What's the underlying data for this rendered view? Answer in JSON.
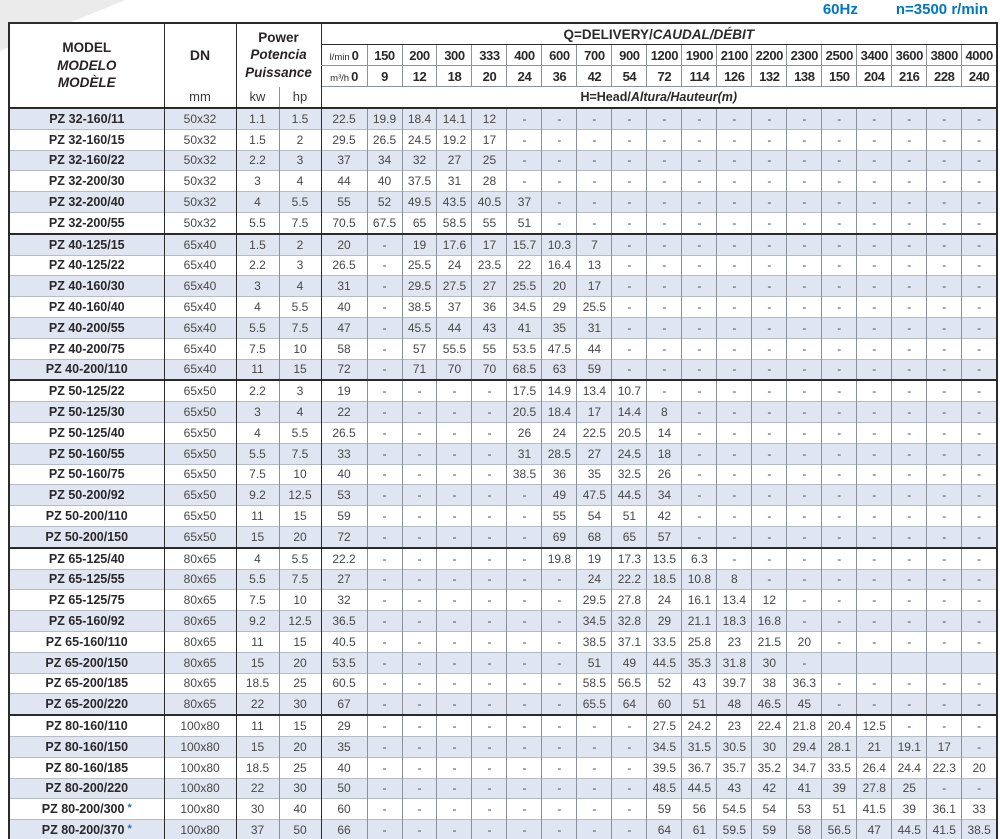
{
  "page": {
    "frequency_label": "60Hz",
    "speed_label": "n=3500 r/min"
  },
  "colors": {
    "accent_blue": "#0076bf",
    "row_alt_bg": "#e0e6f1",
    "border_dark": "#2b2b2b",
    "grid_gray": "#8c929b"
  },
  "table": {
    "header": {
      "model_en": "MODEL",
      "model_es": "MODELO",
      "model_fr": "MODÈLE",
      "dn": "DN",
      "dn_unit": "mm",
      "power_en": "Power",
      "power_es": "Potencia",
      "power_fr": "Puissance",
      "kw": "kw",
      "hp": "hp",
      "q_title_en": "Q=DELIVERY/",
      "q_title_intl": "CAUDAL/DÉBIT",
      "lmin_label": "l/min",
      "m3h_label": "m³/h",
      "lmin_values": [
        "0",
        "150",
        "200",
        "300",
        "333",
        "400",
        "600",
        "700",
        "900",
        "1200",
        "1900",
        "2100",
        "2200",
        "2300",
        "2500",
        "3400",
        "3600",
        "3800",
        "4000"
      ],
      "m3h_values": [
        "0",
        "9",
        "12",
        "18",
        "20",
        "24",
        "36",
        "42",
        "54",
        "72",
        "114",
        "126",
        "132",
        "138",
        "150",
        "204",
        "216",
        "228",
        "240"
      ],
      "head_title_en": "H=Head/",
      "head_title_intl": "Altura/Hauteur(m)"
    },
    "rows": [
      {
        "model": "PZ 32-160/11",
        "asterisk": false,
        "dn": "50x32",
        "kw": "1.1",
        "hp": "1.5",
        "heads": [
          "22.5",
          "19.9",
          "18.4",
          "14.1",
          "12",
          "-",
          "-",
          "-",
          "-",
          "-",
          "-",
          "-",
          "-",
          "-",
          "-",
          "-",
          "-",
          "-",
          "-"
        ]
      },
      {
        "model": "PZ 32-160/15",
        "asterisk": false,
        "dn": "50x32",
        "kw": "1.5",
        "hp": "2",
        "heads": [
          "29.5",
          "26.5",
          "24.5",
          "19.2",
          "17",
          "-",
          "-",
          "-",
          "-",
          "-",
          "-",
          "-",
          "-",
          "-",
          "-",
          "-",
          "-",
          "-",
          "-"
        ]
      },
      {
        "model": "PZ 32-160/22",
        "asterisk": false,
        "dn": "50x32",
        "kw": "2.2",
        "hp": "3",
        "heads": [
          "37",
          "34",
          "32",
          "27",
          "25",
          "-",
          "-",
          "-",
          "-",
          "-",
          "-",
          "-",
          "-",
          "-",
          "-",
          "-",
          "-",
          "-",
          "-"
        ]
      },
      {
        "model": "PZ 32-200/30",
        "asterisk": false,
        "dn": "50x32",
        "kw": "3",
        "hp": "4",
        "heads": [
          "44",
          "40",
          "37.5",
          "31",
          "28",
          "-",
          "-",
          "-",
          "-",
          "-",
          "-",
          "-",
          "-",
          "-",
          "-",
          "-",
          "-",
          "-",
          "-"
        ]
      },
      {
        "model": "PZ 32-200/40",
        "asterisk": false,
        "dn": "50x32",
        "kw": "4",
        "hp": "5.5",
        "heads": [
          "55",
          "52",
          "49.5",
          "43.5",
          "40.5",
          "37",
          "-",
          "-",
          "-",
          "-",
          "-",
          "-",
          "-",
          "-",
          "-",
          "-",
          "-",
          "-",
          "-"
        ]
      },
      {
        "model": "PZ 32-200/55",
        "asterisk": false,
        "dn": "50x32",
        "kw": "5.5",
        "hp": "7.5",
        "heads": [
          "70.5",
          "67.5",
          "65",
          "58.5",
          "55",
          "51",
          "-",
          "-",
          "-",
          "-",
          "-",
          "-",
          "-",
          "-",
          "-",
          "-",
          "-",
          "-",
          "-"
        ]
      },
      {
        "model": "PZ 40-125/15",
        "asterisk": false,
        "dn": "65x40",
        "kw": "1.5",
        "hp": "2",
        "heads": [
          "20",
          "-",
          "19",
          "17.6",
          "17",
          "15.7",
          "10.3",
          "7",
          "-",
          "-",
          "-",
          "-",
          "-",
          "-",
          "-",
          "-",
          "-",
          "-",
          "-"
        ]
      },
      {
        "model": "PZ 40-125/22",
        "asterisk": false,
        "dn": "65x40",
        "kw": "2.2",
        "hp": "3",
        "heads": [
          "26.5",
          "-",
          "25.5",
          "24",
          "23.5",
          "22",
          "16.4",
          "13",
          "-",
          "-",
          "-",
          "-",
          "-",
          "-",
          "-",
          "-",
          "-",
          "-",
          "-"
        ]
      },
      {
        "model": "PZ 40-160/30",
        "asterisk": false,
        "dn": "65x40",
        "kw": "3",
        "hp": "4",
        "heads": [
          "31",
          "-",
          "29.5",
          "27.5",
          "27",
          "25.5",
          "20",
          "17",
          "-",
          "-",
          "-",
          "-",
          "-",
          "-",
          "-",
          "-",
          "-",
          "-",
          "-"
        ]
      },
      {
        "model": "PZ 40-160/40",
        "asterisk": false,
        "dn": "65x40",
        "kw": "4",
        "hp": "5.5",
        "heads": [
          "40",
          "-",
          "38.5",
          "37",
          "36",
          "34.5",
          "29",
          "25.5",
          "-",
          "-",
          "-",
          "-",
          "-",
          "-",
          "-",
          "-",
          "-",
          "-",
          "-"
        ]
      },
      {
        "model": "PZ 40-200/55",
        "asterisk": false,
        "dn": "65x40",
        "kw": "5.5",
        "hp": "7.5",
        "heads": [
          "47",
          "-",
          "45.5",
          "44",
          "43",
          "41",
          "35",
          "31",
          "-",
          "-",
          "-",
          "-",
          "-",
          "-",
          "-",
          "-",
          "-",
          "-",
          "-"
        ]
      },
      {
        "model": "PZ 40-200/75",
        "asterisk": false,
        "dn": "65x40",
        "kw": "7.5",
        "hp": "10",
        "heads": [
          "58",
          "-",
          "57",
          "55.5",
          "55",
          "53.5",
          "47.5",
          "44",
          "-",
          "-",
          "-",
          "-",
          "-",
          "-",
          "-",
          "-",
          "-",
          "-",
          "-"
        ]
      },
      {
        "model": "PZ 40-200/110",
        "asterisk": false,
        "dn": "65x40",
        "kw": "11",
        "hp": "15",
        "heads": [
          "72",
          "-",
          "71",
          "70",
          "70",
          "68.5",
          "63",
          "59",
          "-",
          "-",
          "-",
          "-",
          "-",
          "-",
          "-",
          "-",
          "-",
          "-",
          "-"
        ]
      },
      {
        "model": "PZ 50-125/22",
        "asterisk": false,
        "dn": "65x50",
        "kw": "2.2",
        "hp": "3",
        "heads": [
          "19",
          "-",
          "-",
          "-",
          "-",
          "17.5",
          "14.9",
          "13.4",
          "10.7",
          "-",
          "-",
          "-",
          "-",
          "-",
          "-",
          "-",
          "-",
          "-",
          "-"
        ]
      },
      {
        "model": "PZ 50-125/30",
        "asterisk": false,
        "dn": "65x50",
        "kw": "3",
        "hp": "4",
        "heads": [
          "22",
          "-",
          "-",
          "-",
          "-",
          "20.5",
          "18.4",
          "17",
          "14.4",
          "8",
          "-",
          "-",
          "-",
          "-",
          "-",
          "-",
          "-",
          "-",
          "-"
        ]
      },
      {
        "model": "PZ 50-125/40",
        "asterisk": false,
        "dn": "65x50",
        "kw": "4",
        "hp": "5.5",
        "heads": [
          "26.5",
          "-",
          "-",
          "-",
          "-",
          "26",
          "24",
          "22.5",
          "20.5",
          "14",
          "-",
          "-",
          "-",
          "-",
          "-",
          "-",
          "-",
          "-",
          "-"
        ]
      },
      {
        "model": "PZ 50-160/55",
        "asterisk": false,
        "dn": "65x50",
        "kw": "5.5",
        "hp": "7.5",
        "heads": [
          "33",
          "-",
          "-",
          "-",
          "-",
          "31",
          "28.5",
          "27",
          "24.5",
          "18",
          "-",
          "-",
          "-",
          "-",
          "-",
          "-",
          "-",
          "-",
          "-"
        ]
      },
      {
        "model": "PZ 50-160/75",
        "asterisk": false,
        "dn": "65x50",
        "kw": "7.5",
        "hp": "10",
        "heads": [
          "40",
          "-",
          "-",
          "-",
          "-",
          "38.5",
          "36",
          "35",
          "32.5",
          "26",
          "-",
          "-",
          "-",
          "-",
          "-",
          "-",
          "-",
          "-",
          "-"
        ]
      },
      {
        "model": "PZ 50-200/92",
        "asterisk": false,
        "dn": "65x50",
        "kw": "9.2",
        "hp": "12.5",
        "heads": [
          "53",
          "-",
          "-",
          "-",
          "-",
          "-",
          "49",
          "47.5",
          "44.5",
          "34",
          "-",
          "-",
          "-",
          "-",
          "-",
          "-",
          "-",
          "-",
          "-"
        ]
      },
      {
        "model": "PZ 50-200/110",
        "asterisk": false,
        "dn": "65x50",
        "kw": "11",
        "hp": "15",
        "heads": [
          "59",
          "-",
          "-",
          "-",
          "-",
          "-",
          "55",
          "54",
          "51",
          "42",
          "-",
          "-",
          "-",
          "-",
          "-",
          "-",
          "-",
          "-",
          "-"
        ]
      },
      {
        "model": "PZ 50-200/150",
        "asterisk": false,
        "dn": "65x50",
        "kw": "15",
        "hp": "20",
        "heads": [
          "72",
          "-",
          "-",
          "-",
          "-",
          "-",
          "69",
          "68",
          "65",
          "57",
          "-",
          "-",
          "-",
          "-",
          "-",
          "-",
          "-",
          "-",
          "-"
        ]
      },
      {
        "model": "PZ 65-125/40",
        "asterisk": false,
        "dn": "80x65",
        "kw": "4",
        "hp": "5.5",
        "heads": [
          "22.2",
          "-",
          "-",
          "-",
          "-",
          "-",
          "19.8",
          "19",
          "17.3",
          "13.5",
          "6.3",
          "-",
          "-",
          "-",
          "-",
          "-",
          "-",
          "-",
          "-"
        ]
      },
      {
        "model": "PZ 65-125/55",
        "asterisk": false,
        "dn": "80x65",
        "kw": "5.5",
        "hp": "7.5",
        "heads": [
          "27",
          "-",
          "-",
          "-",
          "-",
          "-",
          "-",
          "24",
          "22.2",
          "18.5",
          "10.8",
          "8",
          "-",
          "-",
          "-",
          "-",
          "-",
          "-",
          "-"
        ]
      },
      {
        "model": "PZ 65-125/75",
        "asterisk": false,
        "dn": "80x65",
        "kw": "7.5",
        "hp": "10",
        "heads": [
          "32",
          "-",
          "-",
          "-",
          "-",
          "-",
          "-",
          "29.5",
          "27.8",
          "24",
          "16.1",
          "13.4",
          "12",
          "-",
          "-",
          "-",
          "-",
          "-",
          "-"
        ]
      },
      {
        "model": "PZ 65-160/92",
        "asterisk": false,
        "dn": "80x65",
        "kw": "9.2",
        "hp": "12.5",
        "heads": [
          "36.5",
          "-",
          "-",
          "-",
          "-",
          "-",
          "-",
          "34.5",
          "32.8",
          "29",
          "21.1",
          "18.3",
          "16.8",
          "-",
          "-",
          "-",
          "-",
          "-",
          "-"
        ]
      },
      {
        "model": "PZ 65-160/110",
        "asterisk": false,
        "dn": "80x65",
        "kw": "11",
        "hp": "15",
        "heads": [
          "40.5",
          "-",
          "-",
          "-",
          "-",
          "-",
          "-",
          "38.5",
          "37.1",
          "33.5",
          "25.8",
          "23",
          "21.5",
          "20",
          "-",
          "-",
          "-",
          "-",
          "-"
        ]
      },
      {
        "model": "PZ 65-200/150",
        "asterisk": false,
        "dn": "80x65",
        "kw": "15",
        "hp": "20",
        "heads": [
          "53.5",
          "-",
          "-",
          "-",
          "-",
          "-",
          "-",
          "51",
          "49",
          "44.5",
          "35.3",
          "31.8",
          "30",
          "-",
          "",
          "",
          "",
          "",
          ""
        ]
      },
      {
        "model": "PZ 65-200/185",
        "asterisk": false,
        "dn": "80x65",
        "kw": "18.5",
        "hp": "25",
        "heads": [
          "60.5",
          "-",
          "-",
          "-",
          "-",
          "-",
          "-",
          "58.5",
          "56.5",
          "52",
          "43",
          "39.7",
          "38",
          "36.3",
          "-",
          "-",
          "-",
          "-",
          "-"
        ]
      },
      {
        "model": "PZ 65-200/220",
        "asterisk": false,
        "dn": "80x65",
        "kw": "22",
        "hp": "30",
        "heads": [
          "67",
          "-",
          "-",
          "-",
          "-",
          "-",
          "-",
          "65.5",
          "64",
          "60",
          "51",
          "48",
          "46.5",
          "45",
          "-",
          "-",
          "-",
          "-",
          "-"
        ]
      },
      {
        "model": "PZ 80-160/110",
        "asterisk": false,
        "dn": "100x80",
        "kw": "11",
        "hp": "15",
        "heads": [
          "29",
          "-",
          "-",
          "-",
          "-",
          "-",
          "-",
          "-",
          "-",
          "27.5",
          "24.2",
          "23",
          "22.4",
          "21.8",
          "20.4",
          "12.5",
          "-",
          "-",
          "-"
        ]
      },
      {
        "model": "PZ 80-160/150",
        "asterisk": false,
        "dn": "100x80",
        "kw": "15",
        "hp": "20",
        "heads": [
          "35",
          "-",
          "-",
          "-",
          "-",
          "-",
          "-",
          "-",
          "-",
          "34.5",
          "31.5",
          "30.5",
          "30",
          "29.4",
          "28.1",
          "21",
          "19.1",
          "17",
          "-"
        ]
      },
      {
        "model": "PZ 80-160/185",
        "asterisk": false,
        "dn": "100x80",
        "kw": "18.5",
        "hp": "25",
        "heads": [
          "40",
          "-",
          "-",
          "-",
          "-",
          "-",
          "-",
          "-",
          "-",
          "39.5",
          "36.7",
          "35.7",
          "35.2",
          "34.7",
          "33.5",
          "26.4",
          "24.4",
          "22.3",
          "20"
        ]
      },
      {
        "model": "PZ 80-200/220",
        "asterisk": false,
        "dn": "100x80",
        "kw": "22",
        "hp": "30",
        "heads": [
          "50",
          "-",
          "-",
          "-",
          "-",
          "-",
          "-",
          "-",
          "-",
          "48.5",
          "44.5",
          "43",
          "42",
          "41",
          "39",
          "27.8",
          "25",
          "-",
          "-"
        ]
      },
      {
        "model": "PZ 80-200/300",
        "asterisk": true,
        "dn": "100x80",
        "kw": "30",
        "hp": "40",
        "heads": [
          "60",
          "-",
          "-",
          "-",
          "-",
          "-",
          "-",
          "-",
          "-",
          "59",
          "56",
          "54.5",
          "54",
          "53",
          "51",
          "41.5",
          "39",
          "36.1",
          "33"
        ]
      },
      {
        "model": "PZ 80-200/370",
        "asterisk": true,
        "dn": "100x80",
        "kw": "37",
        "hp": "50",
        "heads": [
          "66",
          "-",
          "-",
          "-",
          "-",
          "-",
          "-",
          "-",
          "-",
          "64",
          "61",
          "59.5",
          "59",
          "58",
          "56.5",
          "47",
          "44.5",
          "41.5",
          "38.5"
        ]
      }
    ]
  }
}
